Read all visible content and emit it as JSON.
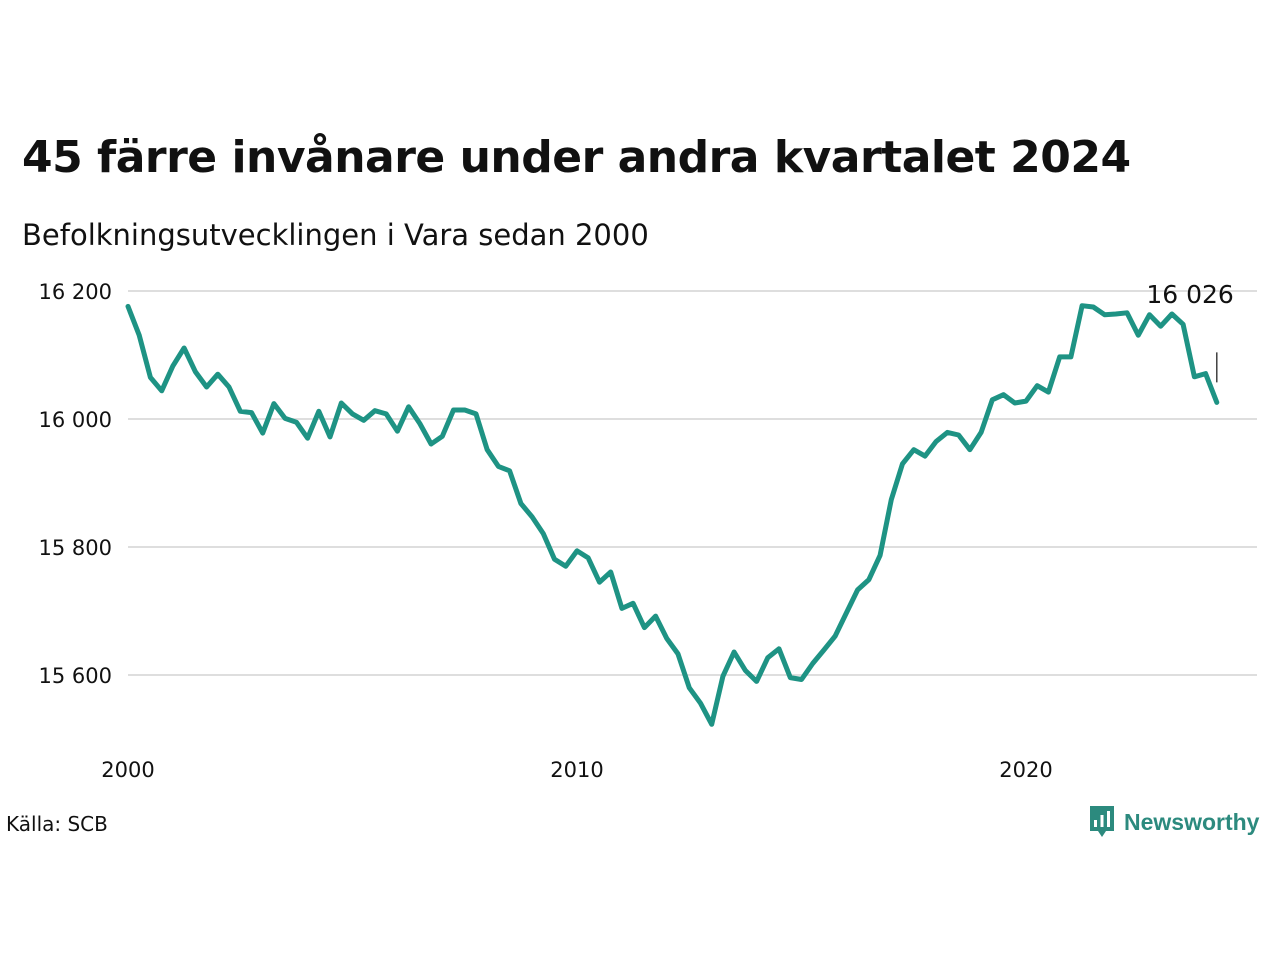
{
  "chart_data": {
    "type": "line",
    "title": "45 färre invånare under andra kvartalet 2024",
    "subtitle": "Befolkningsutvecklingen i Vara sedan 2000",
    "xlabel": "",
    "ylabel": "",
    "x_ticks": [
      "2000",
      "2010",
      "2020"
    ],
    "y_ticks": [
      "15 600",
      "15 800",
      "16 000",
      "16 200"
    ],
    "ylim": [
      15470,
      16220
    ],
    "xlim": [
      2000.0,
      2025.0
    ],
    "grid": "horizontal",
    "line_color": "#1e9384",
    "end_label": "16 026",
    "x_start": 2000.0,
    "x_step": 0.25,
    "values": [
      16176,
      16131,
      16065,
      16044,
      16083,
      16111,
      16074,
      16050,
      16070,
      16050,
      16012,
      16010,
      15978,
      16024,
      16001,
      15995,
      15970,
      16012,
      15972,
      16025,
      16008,
      15998,
      16013,
      16008,
      15981,
      16019,
      15993,
      15961,
      15973,
      16014,
      16014,
      16008,
      15952,
      15926,
      15919,
      15868,
      15847,
      15821,
      15781,
      15770,
      15794,
      15783,
      15745,
      15761,
      15704,
      15712,
      15674,
      15692,
      15657,
      15633,
      15580,
      15556,
      15523,
      15598,
      15636,
      15607,
      15590,
      15627,
      15641,
      15596,
      15593,
      15618,
      15639,
      15661,
      15697,
      15733,
      15749,
      15787,
      15874,
      15930,
      15952,
      15942,
      15965,
      15979,
      15975,
      15952,
      15979,
      16030,
      16038,
      16025,
      16028,
      16052,
      16042,
      16097,
      16097,
      16177,
      16175,
      16163,
      16164,
      16166,
      16131,
      16163,
      16145,
      16164,
      16148,
      16066,
      16071,
      16026
    ]
  },
  "source": "Källa: SCB",
  "logo": {
    "text": "Newsworthy",
    "icon": "bar-chart-badge-icon",
    "color": "#2c8a7e"
  }
}
